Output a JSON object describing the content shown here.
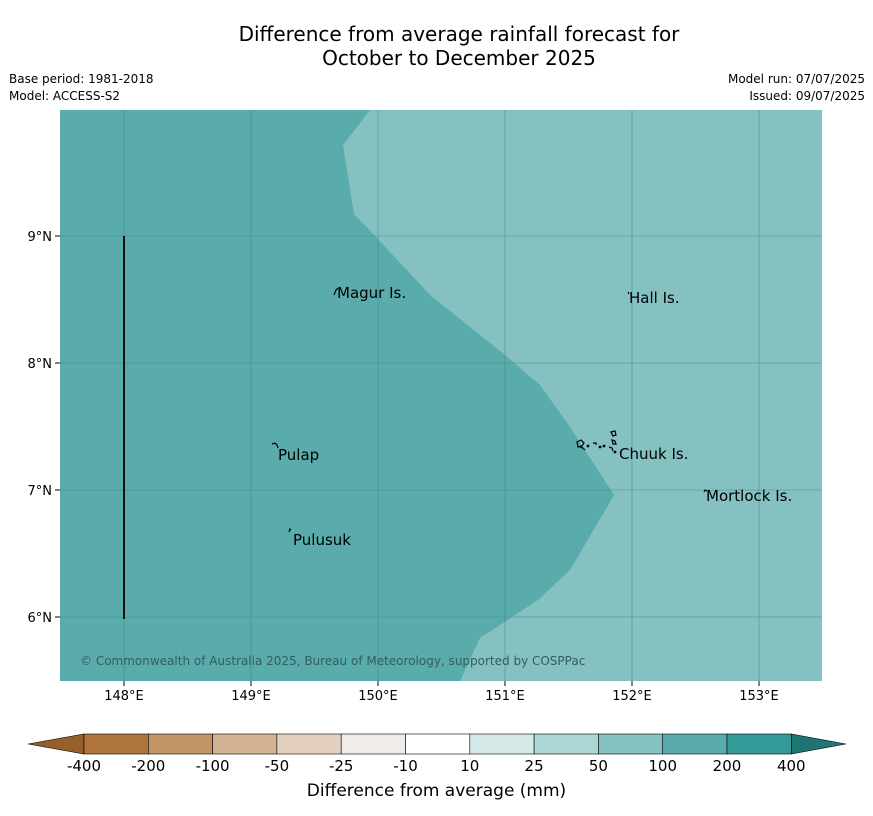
{
  "title": {
    "line1": "Difference from average rainfall forecast for",
    "line2": "October to December 2025"
  },
  "meta": {
    "base_period": "Base period: 1981-2018",
    "model": "Model: ACCESS-S2",
    "model_run": "Model run: 07/07/2025",
    "issued": "Issued: 09/07/2025"
  },
  "map": {
    "lat_ticks": [
      "9°N",
      "8°N",
      "7°N",
      "6°N"
    ],
    "lon_ticks": [
      "148°E",
      "149°E",
      "150°E",
      "151°E",
      "152°E",
      "153°E"
    ],
    "places": [
      {
        "name": "Magur Is."
      },
      {
        "name": "Hall Is."
      },
      {
        "name": "Pulap"
      },
      {
        "name": "Chuuk Is."
      },
      {
        "name": "Mortlock Is."
      },
      {
        "name": "Pulusuk"
      }
    ],
    "copyright": "© Commonwealth of Australia 2025, Bureau of Meteorology, supported by COSPPac",
    "fill_colors": {
      "band_100_200": "#5aabab",
      "band_50_100": "#85c1c0"
    },
    "grid": true
  },
  "colorbar": {
    "labels": [
      "-400",
      "-200",
      "-100",
      "-50",
      "-25",
      "-10",
      "10",
      "25",
      "50",
      "100",
      "200",
      "400"
    ],
    "colors": [
      "#ae7439",
      "#c29466",
      "#d4b393",
      "#e4d0c0",
      "#f0ecea",
      "#ffffff",
      "#d4e9e8",
      "#acd7d6",
      "#85c1c0",
      "#5aabab",
      "#359b98",
      "#1f7572"
    ],
    "extend_low_color": "#96602c",
    "extend_high_color": "#1f7572",
    "label": "Difference from average (mm)"
  }
}
